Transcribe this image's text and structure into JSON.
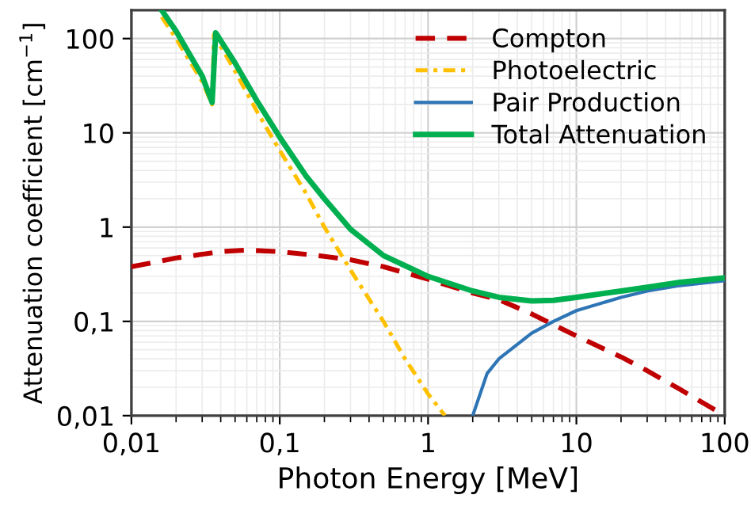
{
  "chart_data": {
    "type": "line",
    "xlabel": "Photon Energy [MeV]",
    "ylabel": "Attenuation coefficient [cm$^{−1}$]",
    "log": "xy",
    "grid": true,
    "legend": "top right",
    "xlim": [
      0.01,
      100
    ],
    "ylim": [
      0.01,
      200
    ],
    "xticks": [
      {
        "value": 0.01,
        "label": "0,01"
      },
      {
        "value": 0.1,
        "label": "0,1"
      },
      1,
      10,
      100
    ],
    "yticks": [
      {
        "value": 0.01,
        "label": "0,01"
      },
      {
        "value": 0.1,
        "label": "0,1"
      },
      1,
      10,
      100
    ],
    "series": [
      {
        "name": "Compton",
        "color": "#c00000",
        "line_style": "dashed",
        "x": [
          0.01,
          0.02,
          0.04,
          0.06,
          0.1,
          0.2,
          0.3,
          0.5,
          1,
          2,
          3,
          5,
          10,
          20,
          30,
          50,
          100
        ],
        "values": [
          0.38,
          0.47,
          0.55,
          0.57,
          0.55,
          0.49,
          0.45,
          0.38,
          0.28,
          0.2,
          0.17,
          0.12,
          0.07,
          0.042,
          0.03,
          0.019,
          0.01
        ]
      },
      {
        "name": "Photoelectric",
        "color": "#ffc000",
        "line_style": "dotted",
        "x": [
          0.016,
          0.02,
          0.03,
          0.035,
          0.036,
          0.05,
          0.07,
          0.1,
          0.15,
          0.2,
          0.3,
          0.5,
          0.7,
          1,
          1.3
        ],
        "values": [
          170,
          100,
          35,
          20,
          110,
          45,
          17,
          6.5,
          2.3,
          1.0,
          0.35,
          0.1,
          0.04,
          0.017,
          0.01
        ]
      },
      {
        "name": "Pair Production",
        "color": "#2e75b6",
        "line_style": "solid",
        "x": [
          2.0,
          2.5,
          3,
          5,
          7,
          10,
          20,
          30,
          50,
          100
        ],
        "values": [
          0.01,
          0.028,
          0.04,
          0.075,
          0.1,
          0.13,
          0.18,
          0.21,
          0.24,
          0.27
        ]
      },
      {
        "name": "Total Attenuation",
        "color": "#00b050",
        "line_style": "solid",
        "x": [
          0.016,
          0.02,
          0.03,
          0.035,
          0.037,
          0.05,
          0.07,
          0.1,
          0.15,
          0.2,
          0.3,
          0.5,
          1,
          2,
          3,
          5,
          7,
          10,
          20,
          30,
          50,
          100
        ],
        "values": [
          200,
          120,
          40,
          21,
          115,
          55,
          22,
          9,
          3.5,
          2.0,
          0.95,
          0.5,
          0.3,
          0.21,
          0.18,
          0.165,
          0.167,
          0.18,
          0.21,
          0.23,
          0.26,
          0.29
        ]
      }
    ]
  }
}
